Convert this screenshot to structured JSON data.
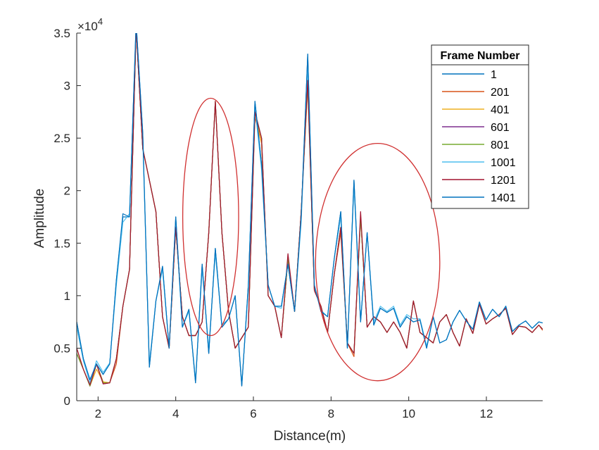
{
  "chart_data": {
    "type": "line",
    "xlabel": "Distance(m)",
    "ylabel": "Amplitude",
    "exponent_label": "×10",
    "exponent_power": "4",
    "xlim": [
      1.45,
      13.45
    ],
    "ylim": [
      0,
      35000
    ],
    "xticks": [
      2,
      4,
      6,
      8,
      10,
      12
    ],
    "xtick_labels": [
      "2",
      "4",
      "6",
      "8",
      "10",
      "12"
    ],
    "yticks": [
      0,
      5000,
      10000,
      15000,
      20000,
      25000,
      30000,
      35000
    ],
    "ytick_labels": [
      "0",
      "0.5",
      "1",
      "1.5",
      "2",
      "2.5",
      "3",
      "3.5"
    ],
    "legend": {
      "title": "Frame Number",
      "placement": "top-right"
    },
    "x": [
      1.45,
      1.62,
      1.79,
      1.96,
      2.13,
      2.3,
      2.47,
      2.64,
      2.81,
      2.98,
      3.15,
      3.32,
      3.49,
      3.66,
      3.83,
      4.0,
      4.17,
      4.34,
      4.51,
      4.68,
      4.85,
      5.02,
      5.19,
      5.36,
      5.53,
      5.7,
      5.87,
      6.04,
      6.21,
      6.38,
      6.55,
      6.72,
      6.89,
      7.06,
      7.23,
      7.4,
      7.57,
      7.74,
      7.91,
      8.08,
      8.25,
      8.42,
      8.59,
      8.76,
      8.93,
      9.1,
      9.27,
      9.44,
      9.61,
      9.78,
      9.95,
      10.12,
      10.29,
      10.46,
      10.63,
      10.8,
      10.97,
      11.14,
      11.31,
      11.48,
      11.65,
      11.82,
      11.99,
      12.16,
      12.33,
      12.5,
      12.67,
      12.84,
      13.01,
      13.18,
      13.35,
      13.45
    ],
    "series": [
      {
        "name": "1",
        "color": "#0072BD",
        "values": [
          7500,
          4000,
          2000,
          3500,
          2500,
          3500,
          11500,
          17500,
          17500,
          36000,
          25500,
          3200,
          9500,
          12800,
          5000,
          17500,
          7000,
          8700,
          1700,
          13000,
          4500,
          14500,
          7000,
          7800,
          10000,
          1400,
          11000,
          28500,
          22500,
          11000,
          9000,
          9000,
          13000,
          8500,
          17500,
          33000,
          11000,
          8500,
          8000,
          13500,
          18000,
          5000,
          21000,
          7500,
          16000,
          7200,
          8800,
          8400,
          8800,
          7000,
          8000,
          7500,
          7700,
          5000,
          8000,
          5500,
          5800,
          7500,
          8600,
          7600,
          6800,
          9400,
          7700,
          8700,
          8000,
          9000,
          6600,
          7200,
          7600,
          6900,
          7500,
          7400
        ]
      },
      {
        "name": "201",
        "color": "#D95319",
        "values": [
          5000,
          3000,
          1400,
          3500,
          1800,
          1700,
          3500,
          9000,
          12500,
          35500,
          24000,
          21000,
          18000,
          8000,
          5000,
          16500,
          8000,
          6200,
          6200,
          7500,
          16000,
          28500,
          16000,
          8500,
          5000,
          6000,
          7000,
          27000,
          24500,
          10000,
          9000,
          6000,
          13500,
          8500,
          18000,
          30000,
          10500,
          9000,
          6500,
          12000,
          16000,
          5500,
          4200,
          17500,
          7000,
          8000,
          7500,
          6500,
          7500,
          6500,
          5000,
          9500,
          6500,
          6000,
          5500,
          7500,
          8200,
          6500,
          5200,
          7800,
          6400,
          9200,
          7300,
          7800,
          8200,
          8800,
          6300,
          7100,
          7000,
          6500,
          7200,
          6700
        ]
      },
      {
        "name": "401",
        "color": "#EDB120",
        "values": [
          4500,
          3000,
          1400,
          3000,
          1800,
          1700,
          4000,
          9000,
          12500,
          35500,
          24000,
          21000,
          18000,
          8000,
          5000,
          16500,
          8000,
          6200,
          6200,
          7500,
          16000,
          28500,
          16000,
          8500,
          5000,
          6000,
          7000,
          27500,
          24500,
          10000,
          9000,
          6000,
          13500,
          8500,
          18000,
          30000,
          10500,
          9000,
          6500,
          12000,
          16500,
          5500,
          4500,
          17500,
          7000,
          8000,
          7500,
          6500,
          7500,
          6500,
          5000,
          9500,
          6500,
          6000,
          5500,
          7500,
          8200,
          6500,
          5200,
          7800,
          6400,
          9200,
          7300,
          7800,
          8200,
          8800,
          6300,
          7100,
          7000,
          6500,
          7200,
          6800
        ]
      },
      {
        "name": "601",
        "color": "#7E2F8E",
        "values": [
          4500,
          3000,
          1400,
          3500,
          1600,
          1700,
          4000,
          9000,
          12500,
          35500,
          24000,
          21000,
          18000,
          8000,
          5000,
          16500,
          8000,
          6200,
          6200,
          7500,
          16000,
          28500,
          16000,
          8500,
          5000,
          6000,
          7000,
          27500,
          25000,
          10000,
          9000,
          6000,
          13500,
          8500,
          18000,
          30500,
          10500,
          9000,
          6500,
          12000,
          16500,
          5500,
          4500,
          17500,
          7000,
          8000,
          7500,
          6500,
          7500,
          6500,
          5000,
          9500,
          6500,
          6000,
          5500,
          7500,
          8200,
          6500,
          5200,
          7800,
          6400,
          9200,
          7300,
          7800,
          8200,
          8800,
          6300,
          7100,
          7000,
          6500,
          7200,
          6800
        ]
      },
      {
        "name": "801",
        "color": "#77AC30",
        "values": [
          4500,
          3000,
          1400,
          3500,
          1700,
          1700,
          4000,
          9000,
          12500,
          35500,
          24000,
          21000,
          18000,
          8000,
          5000,
          16500,
          8000,
          6200,
          6200,
          7500,
          16000,
          28500,
          16000,
          8500,
          5000,
          6000,
          7000,
          27500,
          25000,
          10000,
          9000,
          6000,
          13500,
          8500,
          18000,
          30500,
          10500,
          9000,
          6500,
          12000,
          16500,
          5500,
          4500,
          17500,
          7000,
          8000,
          7500,
          6500,
          7500,
          6500,
          5000,
          9500,
          6500,
          6000,
          5500,
          7500,
          8200,
          6500,
          5200,
          7800,
          6400,
          9200,
          7300,
          7800,
          8200,
          8800,
          6300,
          7100,
          7000,
          6500,
          7200,
          6800
        ]
      },
      {
        "name": "1001",
        "color": "#4DBEEE",
        "values": [
          7000,
          3800,
          1700,
          3800,
          2700,
          3600,
          11000,
          17000,
          17800,
          35500,
          25000,
          3500,
          9500,
          12500,
          5000,
          17000,
          7000,
          8500,
          2000,
          12500,
          5000,
          14000,
          7200,
          7800,
          10000,
          1600,
          10500,
          28000,
          22000,
          11000,
          9000,
          8800,
          13000,
          8500,
          17000,
          32000,
          10800,
          8600,
          8000,
          13500,
          17500,
          5000,
          20500,
          7500,
          16000,
          7500,
          9000,
          8500,
          9000,
          7200,
          8200,
          7800,
          7800,
          5200,
          8000,
          5500,
          5800,
          7500,
          8600,
          7600,
          6800,
          9400,
          7700,
          8700,
          8000,
          9000,
          6600,
          7200,
          7600,
          6900,
          7500,
          7400
        ]
      },
      {
        "name": "1201",
        "color": "#A2142F",
        "values": [
          5000,
          3000,
          1500,
          3500,
          1600,
          1700,
          4000,
          9000,
          12500,
          35500,
          24000,
          21000,
          18000,
          8000,
          5000,
          16500,
          8000,
          6200,
          6200,
          7500,
          16000,
          28500,
          16000,
          8500,
          5000,
          6000,
          7000,
          27500,
          25000,
          10000,
          9000,
          6000,
          14000,
          8500,
          18000,
          30500,
          10500,
          9000,
          6500,
          12000,
          16500,
          5500,
          4500,
          18000,
          7000,
          8000,
          7500,
          6500,
          7500,
          6500,
          5000,
          9500,
          6500,
          6000,
          5500,
          7500,
          8200,
          6500,
          5200,
          7800,
          6400,
          9200,
          7300,
          7800,
          8200,
          8800,
          6300,
          7100,
          7000,
          6500,
          7200,
          6800
        ]
      },
      {
        "name": "1401",
        "color": "#0072BD",
        "values": [
          7500,
          4000,
          2000,
          3500,
          2500,
          3500,
          11500,
          17800,
          17500,
          36000,
          25500,
          3200,
          9500,
          12800,
          5000,
          17500,
          7000,
          8700,
          1700,
          13000,
          4500,
          14500,
          7000,
          7800,
          10000,
          1400,
          11000,
          28500,
          22500,
          11000,
          9000,
          9000,
          13000,
          8500,
          17500,
          33000,
          11000,
          8500,
          8000,
          13500,
          18000,
          5000,
          21000,
          7500,
          16000,
          7200,
          8800,
          8400,
          8800,
          7000,
          8000,
          7500,
          7700,
          5000,
          8000,
          5500,
          5800,
          7500,
          8600,
          7600,
          6800,
          9400,
          7700,
          8700,
          8000,
          9000,
          6600,
          7200,
          7600,
          6900,
          7500,
          7400
        ]
      }
    ],
    "annotations": [
      {
        "shape": "ellipse",
        "color": "#D03030",
        "cx": 4.9,
        "cy": 17500,
        "rx": 0.72,
        "ry": 11300
      },
      {
        "shape": "ellipse",
        "color": "#D03030",
        "cx": 9.2,
        "cy": 13200,
        "rx": 1.6,
        "ry": 11300
      }
    ],
    "grid": false
  }
}
